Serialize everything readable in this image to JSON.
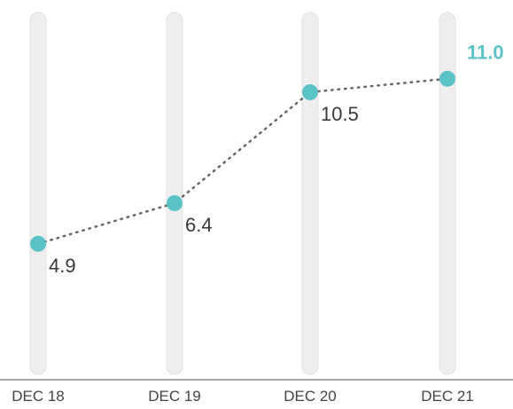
{
  "chart_data": {
    "type": "line",
    "categories": [
      "DEC 18",
      "DEC 19",
      "DEC 20",
      "DEC 21"
    ],
    "values": [
      4.9,
      6.4,
      10.5,
      11.0
    ],
    "value_labels": [
      "4.9",
      "6.4",
      "10.5",
      "11.0"
    ],
    "highlight_index": 3,
    "title": "",
    "xlabel": "",
    "ylabel": "",
    "grid": false,
    "colors": {
      "point": "#5bc3c8",
      "line": "#666666",
      "highlight_label": "#5bc3c8",
      "track": "#eeeeee"
    }
  }
}
